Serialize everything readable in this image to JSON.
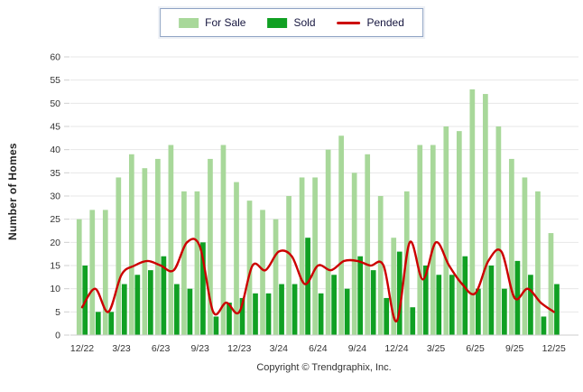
{
  "legend": {
    "items": [
      {
        "label": "For Sale",
        "color": "#A8D89A",
        "kind": "bar"
      },
      {
        "label": "Sold",
        "color": "#10A023",
        "kind": "bar"
      },
      {
        "label": "Pended",
        "color": "#CC0000",
        "kind": "line"
      }
    ]
  },
  "footer": {
    "text": "Copyright © Trendgraphix, Inc."
  },
  "colors": {
    "for_sale": "#A8D89A",
    "sold": "#10A023",
    "pended": "#CC0000",
    "gridline": "#e7e7e7",
    "axis_line": "#cccccc",
    "tick_text": "#333333"
  },
  "chart_data": {
    "type": "bar",
    "title": "",
    "xlabel": "",
    "ylabel": "Number of Homes",
    "ylim": [
      0,
      60
    ],
    "ytick_step": 5,
    "grid": true,
    "legend_position": "top-center",
    "categories": [
      "12/22",
      "1/23",
      "2/23",
      "3/23",
      "4/23",
      "5/23",
      "6/23",
      "7/23",
      "8/23",
      "9/23",
      "10/23",
      "11/23",
      "12/23",
      "1/24",
      "2/24",
      "3/24",
      "4/24",
      "5/24",
      "6/24",
      "7/24",
      "8/24",
      "9/24",
      "10/24",
      "11/24",
      "12/24",
      "1/25",
      "2/25",
      "3/25",
      "4/25",
      "5/25",
      "6/25",
      "7/25",
      "8/25",
      "9/25",
      "10/25",
      "11/25",
      "12/25"
    ],
    "x_tick_labels_shown": [
      "12/22",
      "3/23",
      "6/23",
      "9/23",
      "12/23",
      "3/24",
      "6/24",
      "9/24",
      "12/24",
      "3/25",
      "6/25",
      "9/25",
      "12/25"
    ],
    "series": [
      {
        "name": "For Sale",
        "kind": "bar",
        "color": "#A8D89A",
        "values": [
          25,
          27,
          27,
          34,
          39,
          36,
          38,
          41,
          31,
          31,
          38,
          41,
          33,
          29,
          27,
          25,
          30,
          34,
          34,
          40,
          43,
          35,
          39,
          30,
          21,
          31,
          41,
          41,
          45,
          44,
          53,
          52,
          45,
          38,
          34,
          31,
          22
        ]
      },
      {
        "name": "Sold",
        "kind": "bar",
        "color": "#10A023",
        "values": [
          15,
          5,
          5,
          11,
          13,
          14,
          17,
          11,
          10,
          20,
          4,
          7,
          8,
          9,
          9,
          11,
          11,
          21,
          9,
          13,
          10,
          17,
          14,
          8,
          18,
          6,
          15,
          13,
          13,
          17,
          10,
          15,
          10,
          16,
          13,
          4,
          11
        ]
      },
      {
        "name": "Pended",
        "kind": "line",
        "color": "#CC0000",
        "values": [
          6,
          10,
          5,
          13,
          15,
          16,
          15,
          14,
          20,
          19,
          5,
          7,
          5,
          15,
          14,
          18,
          17,
          11,
          15,
          14,
          16,
          16,
          15,
          15,
          3,
          20,
          12,
          20,
          15,
          11,
          9,
          16,
          18,
          8,
          10,
          7,
          5
        ]
      }
    ]
  }
}
